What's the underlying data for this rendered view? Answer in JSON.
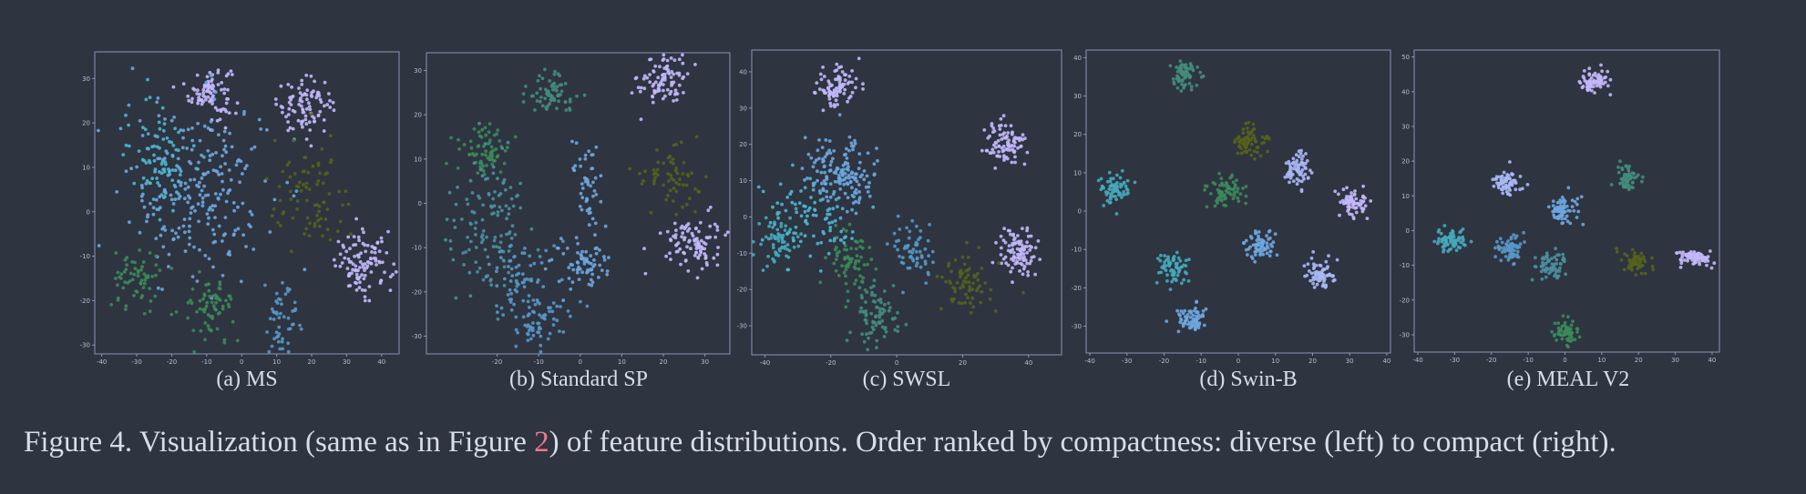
{
  "figure": {
    "label": "Figure 4.",
    "text_before_ref": "Visualization (same as in Figure ",
    "ref": "2",
    "text_after_ref": ") of feature distributions. Order ranked by compactness: diverse (left) to compact (right)."
  },
  "colors": {
    "background": "#2e3440",
    "lavender": "#c3b8fb",
    "periwinkle": "#a9b8f5",
    "sky": "#6ea6df",
    "steel": "#5897c7",
    "cyan": "#4cb7cf",
    "teal": "#46a8ba",
    "slate_teal": "#4d8f9f",
    "green_teal": "#438c7c",
    "green": "#3c8a5a",
    "olive": "#55621c"
  },
  "chart_data": [
    {
      "type": "scatter",
      "caption": "(a) MS",
      "xlim": [
        -42,
        45
      ],
      "ylim": [
        -32,
        36
      ],
      "xticks": [
        "-40",
        "-30",
        "-20",
        "-10",
        "0",
        "10",
        "20",
        "30",
        "40"
      ],
      "yticks": [
        "-30",
        "-20",
        "-10",
        "0",
        "10",
        "20",
        "30"
      ],
      "clusters": [
        {
          "color": "lavender",
          "cx": -9,
          "cy": 27,
          "sx": 3,
          "sy": 3,
          "n": 90
        },
        {
          "color": "lavender",
          "cx": 18,
          "cy": 24,
          "sx": 4,
          "sy": 3,
          "n": 90
        },
        {
          "color": "lavender",
          "cx": 35,
          "cy": -12,
          "sx": 4,
          "sy": 3.5,
          "n": 110
        },
        {
          "color": "sky",
          "cx": -12,
          "cy": 5,
          "sx": 10,
          "sy": 10,
          "n": 240
        },
        {
          "color": "cyan",
          "cx": -24,
          "cy": 13,
          "sx": 5,
          "sy": 6,
          "n": 90
        },
        {
          "color": "steel",
          "cx": 12,
          "cy": -24,
          "sx": 3,
          "sy": 5,
          "n": 50
        },
        {
          "color": "olive",
          "cx": 20,
          "cy": 3,
          "sx": 6,
          "sy": 6,
          "n": 80
        },
        {
          "color": "green",
          "cx": -30,
          "cy": -16,
          "sx": 3.5,
          "sy": 4,
          "n": 60
        },
        {
          "color": "green",
          "cx": -9,
          "cy": -22,
          "sx": 3.5,
          "sy": 3.5,
          "n": 70
        }
      ]
    },
    {
      "type": "scatter",
      "caption": "(b) Standard SP",
      "xlim": [
        -37,
        36
      ],
      "ylim": [
        -34,
        34
      ],
      "xticks": [
        "-20",
        "-10",
        "0",
        "10",
        "20",
        "30"
      ],
      "yticks": [
        "-30",
        "-20",
        "-10",
        "0",
        "10",
        "20",
        "30"
      ],
      "clusters": [
        {
          "color": "lavender",
          "cx": 20,
          "cy": 28,
          "sx": 3,
          "sy": 3,
          "n": 90
        },
        {
          "color": "lavender",
          "cx": 27,
          "cy": -9,
          "sx": 3.5,
          "sy": 3,
          "n": 100
        },
        {
          "color": "green_teal",
          "cx": -7,
          "cy": 25,
          "sx": 3,
          "sy": 2.5,
          "n": 70
        },
        {
          "color": "green",
          "cx": -23,
          "cy": 12,
          "sx": 3,
          "sy": 3,
          "n": 70
        },
        {
          "color": "slate_teal",
          "cx": -22,
          "cy": -4,
          "sx": 5,
          "sy": 7,
          "n": 120
        },
        {
          "color": "sky",
          "cx": 1,
          "cy": 3,
          "sx": 2,
          "sy": 6,
          "n": 50
        },
        {
          "color": "sky",
          "cx": 0,
          "cy": -14,
          "sx": 3.5,
          "sy": 2.5,
          "n": 70
        },
        {
          "color": "steel",
          "cx": -15,
          "cy": -17,
          "sx": 4,
          "sy": 4,
          "n": 60
        },
        {
          "color": "steel",
          "cx": -10,
          "cy": -26,
          "sx": 4,
          "sy": 3,
          "n": 70
        },
        {
          "color": "olive",
          "cx": 21,
          "cy": 6,
          "sx": 4,
          "sy": 4,
          "n": 60
        }
      ]
    },
    {
      "type": "scatter",
      "caption": "(c) SWSL",
      "xlim": [
        -44,
        50
      ],
      "ylim": [
        -38,
        46
      ],
      "xticks": [
        "-40",
        "-20",
        "0",
        "20",
        "40"
      ],
      "yticks": [
        "-30",
        "-20",
        "-10",
        "0",
        "10",
        "20",
        "30",
        "40"
      ],
      "clusters": [
        {
          "color": "lavender",
          "cx": -18,
          "cy": 36,
          "sx": 3.5,
          "sy": 3,
          "n": 90
        },
        {
          "color": "lavender",
          "cx": 33,
          "cy": 20,
          "sx": 3,
          "sy": 3,
          "n": 90
        },
        {
          "color": "lavender",
          "cx": 37,
          "cy": -10,
          "sx": 3,
          "sy": 3.5,
          "n": 100
        },
        {
          "color": "sky",
          "cx": -17,
          "cy": 12,
          "sx": 5,
          "sy": 5,
          "n": 150
        },
        {
          "color": "teal",
          "cx": -36,
          "cy": -7,
          "sx": 3,
          "sy": 4,
          "n": 70
        },
        {
          "color": "steel",
          "cx": 5,
          "cy": -10,
          "sx": 3.5,
          "sy": 4,
          "n": 60
        },
        {
          "color": "green",
          "cx": -15,
          "cy": -11,
          "sx": 3.5,
          "sy": 4,
          "n": 70
        },
        {
          "color": "green_teal",
          "cx": -7,
          "cy": -27,
          "sx": 3.5,
          "sy": 4,
          "n": 80
        },
        {
          "color": "olive",
          "cx": 22,
          "cy": -19,
          "sx": 4,
          "sy": 4.5,
          "n": 70
        },
        {
          "color": "cyan",
          "cx": -25,
          "cy": 0,
          "sx": 8,
          "sy": 7,
          "n": 90
        }
      ]
    },
    {
      "type": "scatter",
      "caption": "(d) Swin-B",
      "xlim": [
        -41,
        41
      ],
      "ylim": [
        -37,
        42
      ],
      "xticks": [
        "-40",
        "-30",
        "-20",
        "-10",
        "0",
        "10",
        "20",
        "30",
        "40"
      ],
      "yticks": [
        "-30",
        "-20",
        "-10",
        "0",
        "10",
        "20",
        "30",
        "40"
      ],
      "clusters": [
        {
          "color": "green_teal",
          "cx": -15,
          "cy": 35,
          "sx": 2,
          "sy": 2,
          "n": 70
        },
        {
          "color": "teal",
          "cx": -33,
          "cy": 6,
          "sx": 2,
          "sy": 2,
          "n": 70
        },
        {
          "color": "olive",
          "cx": 3,
          "cy": 18,
          "sx": 2,
          "sy": 2,
          "n": 70
        },
        {
          "color": "periwinkle",
          "cx": 16,
          "cy": 11,
          "sx": 1.8,
          "sy": 2.5,
          "n": 70
        },
        {
          "color": "lavender",
          "cx": 31,
          "cy": 2,
          "sx": 2,
          "sy": 2,
          "n": 70
        },
        {
          "color": "green",
          "cx": -3,
          "cy": 5,
          "sx": 2.5,
          "sy": 2,
          "n": 70
        },
        {
          "color": "teal",
          "cx": -18,
          "cy": -15,
          "sx": 2,
          "sy": 2,
          "n": 70
        },
        {
          "color": "sky",
          "cx": 6,
          "cy": -9,
          "sx": 2,
          "sy": 2,
          "n": 70
        },
        {
          "color": "periwinkle",
          "cx": 22,
          "cy": -17,
          "sx": 2,
          "sy": 2,
          "n": 70
        },
        {
          "color": "sky",
          "cx": -13,
          "cy": -28,
          "sx": 2,
          "sy": 2,
          "n": 70
        }
      ]
    },
    {
      "type": "scatter",
      "caption": "(e) MEAL V2",
      "xlim": [
        -41,
        42
      ],
      "ylim": [
        -35,
        52
      ],
      "xticks": [
        "-40",
        "-30",
        "-20",
        "-10",
        "0",
        "10",
        "20",
        "30",
        "40"
      ],
      "yticks": [
        "-30",
        "-20",
        "-10",
        "0",
        "10",
        "20",
        "30",
        "40",
        "50"
      ],
      "clusters": [
        {
          "color": "lavender",
          "cx": 8,
          "cy": 43,
          "sx": 1.8,
          "sy": 1.8,
          "n": 70
        },
        {
          "color": "periwinkle",
          "cx": -16,
          "cy": 14,
          "sx": 2,
          "sy": 1.8,
          "n": 70
        },
        {
          "color": "green_teal",
          "cx": 17,
          "cy": 15,
          "sx": 1.5,
          "sy": 2,
          "n": 60
        },
        {
          "color": "sky",
          "cx": -1,
          "cy": 6,
          "sx": 2,
          "sy": 2,
          "n": 70
        },
        {
          "color": "teal",
          "cx": -31,
          "cy": -3,
          "sx": 2,
          "sy": 1.8,
          "n": 70
        },
        {
          "color": "steel",
          "cx": -15,
          "cy": -5,
          "sx": 2,
          "sy": 2,
          "n": 70
        },
        {
          "color": "slate_teal",
          "cx": -4,
          "cy": -10,
          "sx": 2,
          "sy": 1.8,
          "n": 70
        },
        {
          "color": "olive",
          "cx": 19,
          "cy": -9,
          "sx": 2,
          "sy": 1.5,
          "n": 60
        },
        {
          "color": "lavender",
          "cx": 35,
          "cy": -8,
          "sx": 2.5,
          "sy": 1.2,
          "n": 70
        },
        {
          "color": "green",
          "cx": 0,
          "cy": -29,
          "sx": 1.5,
          "sy": 1.8,
          "n": 60
        }
      ]
    }
  ]
}
